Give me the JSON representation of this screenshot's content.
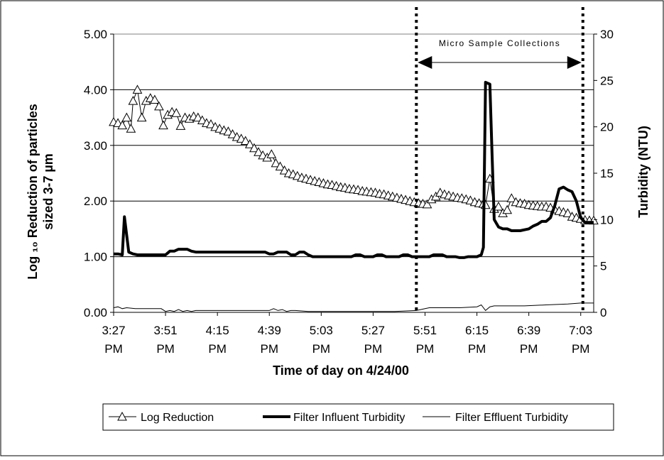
{
  "chart_data": {
    "type": "line",
    "xlabel": "Time of day on 4/24/00",
    "ylabel_left_line1": "Log ₁₀ Reduction of particles",
    "ylabel_left_line2": "sized 3-7 µm",
    "ylabel_right": "Turbidity (NTU)",
    "x_range_minutes": [
      0,
      222
    ],
    "x_tick_labels": [
      {
        "time": "3:27",
        "suffix": "PM",
        "minutes": 0
      },
      {
        "time": "3:51",
        "suffix": "PM",
        "minutes": 24
      },
      {
        "time": "4:15",
        "suffix": "PM",
        "minutes": 48
      },
      {
        "time": "4:39",
        "suffix": "PM",
        "minutes": 72
      },
      {
        "time": "5:03",
        "suffix": "PM",
        "minutes": 96
      },
      {
        "time": "5:27",
        "suffix": "PM",
        "minutes": 120
      },
      {
        "time": "5:51",
        "suffix": "PM",
        "minutes": 144
      },
      {
        "time": "6:15",
        "suffix": "PM",
        "minutes": 168
      },
      {
        "time": "6:39",
        "suffix": "PM",
        "minutes": 192
      },
      {
        "time": "7:03",
        "suffix": "PM",
        "minutes": 216
      }
    ],
    "y_left": {
      "range": [
        0,
        5
      ],
      "ticks": [
        "0.00",
        "1.00",
        "2.00",
        "3.00",
        "4.00",
        "5.00"
      ]
    },
    "y_right": {
      "range": [
        0,
        30
      ],
      "ticks": [
        "0",
        "5",
        "10",
        "15",
        "20",
        "25",
        "30"
      ]
    },
    "grid": "horizontal",
    "annotation": {
      "label": "Micro Sample Collections",
      "start_minutes": 140,
      "end_minutes": 217
    },
    "series": [
      {
        "name": "Log Reduction",
        "axis": "left",
        "marker": "triangle",
        "points": [
          [
            0,
            3.42
          ],
          [
            2,
            3.4
          ],
          [
            4,
            3.36
          ],
          [
            6,
            3.5
          ],
          [
            8,
            3.3
          ],
          [
            9,
            3.8
          ],
          [
            11,
            4.0
          ],
          [
            13,
            3.5
          ],
          [
            15,
            3.8
          ],
          [
            17,
            3.85
          ],
          [
            19,
            3.82
          ],
          [
            21,
            3.7
          ],
          [
            23,
            3.36
          ],
          [
            25,
            3.55
          ],
          [
            27,
            3.6
          ],
          [
            29,
            3.58
          ],
          [
            31,
            3.35
          ],
          [
            33,
            3.5
          ],
          [
            35,
            3.48
          ],
          [
            37,
            3.52
          ],
          [
            39,
            3.5
          ],
          [
            41,
            3.45
          ],
          [
            43,
            3.4
          ],
          [
            45,
            3.38
          ],
          [
            47,
            3.33
          ],
          [
            49,
            3.3
          ],
          [
            51,
            3.27
          ],
          [
            53,
            3.25
          ],
          [
            55,
            3.2
          ],
          [
            57,
            3.15
          ],
          [
            59,
            3.12
          ],
          [
            61,
            3.08
          ],
          [
            63,
            3.02
          ],
          [
            65,
            2.95
          ],
          [
            67,
            2.88
          ],
          [
            69,
            2.82
          ],
          [
            71,
            2.78
          ],
          [
            73,
            2.84
          ],
          [
            75,
            2.68
          ],
          [
            77,
            2.62
          ],
          [
            79,
            2.55
          ],
          [
            81,
            2.5
          ],
          [
            83,
            2.48
          ],
          [
            85,
            2.45
          ],
          [
            87,
            2.42
          ],
          [
            89,
            2.4
          ],
          [
            91,
            2.38
          ],
          [
            93,
            2.36
          ],
          [
            95,
            2.34
          ],
          [
            97,
            2.32
          ],
          [
            99,
            2.3
          ],
          [
            101,
            2.29
          ],
          [
            103,
            2.27
          ],
          [
            105,
            2.25
          ],
          [
            107,
            2.24
          ],
          [
            109,
            2.22
          ],
          [
            111,
            2.21
          ],
          [
            113,
            2.2
          ],
          [
            115,
            2.18
          ],
          [
            117,
            2.17
          ],
          [
            119,
            2.16
          ],
          [
            121,
            2.15
          ],
          [
            123,
            2.13
          ],
          [
            125,
            2.12
          ],
          [
            127,
            2.1
          ],
          [
            129,
            2.08
          ],
          [
            131,
            2.06
          ],
          [
            133,
            2.04
          ],
          [
            135,
            2.02
          ],
          [
            137,
            2.0
          ],
          [
            139,
            1.98
          ],
          [
            141,
            1.96
          ],
          [
            143,
            1.95
          ],
          [
            145,
            1.94
          ],
          [
            147,
            2.03
          ],
          [
            149,
            2.08
          ],
          [
            151,
            2.15
          ],
          [
            153,
            2.12
          ],
          [
            155,
            2.1
          ],
          [
            157,
            2.08
          ],
          [
            159,
            2.06
          ],
          [
            161,
            2.05
          ],
          [
            163,
            2.03
          ],
          [
            165,
            2.01
          ],
          [
            167,
            1.98
          ],
          [
            169,
            1.96
          ],
          [
            171,
            1.95
          ],
          [
            172,
            1.93
          ],
          [
            174,
            2.4
          ],
          [
            176,
            1.86
          ],
          [
            178,
            1.9
          ],
          [
            180,
            1.78
          ],
          [
            182,
            1.84
          ],
          [
            184,
            2.05
          ],
          [
            186,
            1.98
          ],
          [
            188,
            1.96
          ],
          [
            190,
            1.95
          ],
          [
            192,
            1.93
          ],
          [
            194,
            1.92
          ],
          [
            196,
            1.91
          ],
          [
            198,
            1.9
          ],
          [
            200,
            1.9
          ],
          [
            202,
            1.88
          ],
          [
            204,
            1.85
          ],
          [
            206,
            1.82
          ],
          [
            208,
            1.8
          ],
          [
            210,
            1.78
          ],
          [
            212,
            1.72
          ],
          [
            214,
            1.7
          ],
          [
            216,
            1.68
          ],
          [
            218,
            1.66
          ],
          [
            220,
            1.65
          ],
          [
            222,
            1.65
          ]
        ]
      },
      {
        "name": "Filter Influent Turbidity",
        "axis": "right",
        "points": [
          [
            0,
            6.3
          ],
          [
            2,
            6.3
          ],
          [
            4,
            6.2
          ],
          [
            5,
            10.3
          ],
          [
            7,
            6.5
          ],
          [
            9,
            6.3
          ],
          [
            11,
            6.2
          ],
          [
            13,
            6.2
          ],
          [
            20,
            6.2
          ],
          [
            24,
            6.2
          ],
          [
            26,
            6.6
          ],
          [
            28,
            6.6
          ],
          [
            30,
            6.8
          ],
          [
            32,
            6.8
          ],
          [
            34,
            6.8
          ],
          [
            36,
            6.6
          ],
          [
            38,
            6.5
          ],
          [
            40,
            6.5
          ],
          [
            50,
            6.5
          ],
          [
            60,
            6.5
          ],
          [
            70,
            6.5
          ],
          [
            72,
            6.3
          ],
          [
            74,
            6.3
          ],
          [
            76,
            6.5
          ],
          [
            78,
            6.5
          ],
          [
            80,
            6.5
          ],
          [
            82,
            6.2
          ],
          [
            84,
            6.2
          ],
          [
            86,
            6.5
          ],
          [
            88,
            6.5
          ],
          [
            90,
            6.2
          ],
          [
            92,
            6.0
          ],
          [
            94,
            6.0
          ],
          [
            100,
            6.0
          ],
          [
            110,
            6.0
          ],
          [
            112,
            6.2
          ],
          [
            114,
            6.2
          ],
          [
            116,
            6.0
          ],
          [
            118,
            6.0
          ],
          [
            120,
            6.0
          ],
          [
            122,
            6.2
          ],
          [
            124,
            6.2
          ],
          [
            126,
            6.0
          ],
          [
            128,
            6.0
          ],
          [
            130,
            6.0
          ],
          [
            132,
            6.0
          ],
          [
            134,
            6.2
          ],
          [
            136,
            6.2
          ],
          [
            138,
            6.0
          ],
          [
            140,
            6.0
          ],
          [
            142,
            6.0
          ],
          [
            144,
            6.0
          ],
          [
            146,
            6.0
          ],
          [
            148,
            6.2
          ],
          [
            150,
            6.2
          ],
          [
            152,
            6.2
          ],
          [
            154,
            6.0
          ],
          [
            156,
            6.0
          ],
          [
            158,
            6.0
          ],
          [
            160,
            5.9
          ],
          [
            162,
            5.9
          ],
          [
            164,
            6.0
          ],
          [
            166,
            6.0
          ],
          [
            168,
            6.0
          ],
          [
            170,
            6.2
          ],
          [
            171,
            7.0
          ],
          [
            172,
            24.8
          ],
          [
            174,
            24.6
          ],
          [
            175,
            17.0
          ],
          [
            176,
            10.0
          ],
          [
            178,
            9.2
          ],
          [
            180,
            9.0
          ],
          [
            182,
            9.0
          ],
          [
            184,
            8.8
          ],
          [
            186,
            8.8
          ],
          [
            188,
            8.8
          ],
          [
            190,
            8.9
          ],
          [
            192,
            9.0
          ],
          [
            194,
            9.3
          ],
          [
            196,
            9.5
          ],
          [
            198,
            9.8
          ],
          [
            200,
            9.8
          ],
          [
            202,
            10.2
          ],
          [
            204,
            11.5
          ],
          [
            206,
            13.3
          ],
          [
            208,
            13.5
          ],
          [
            210,
            13.2
          ],
          [
            212,
            13.0
          ],
          [
            214,
            12.0
          ],
          [
            216,
            10.2
          ],
          [
            218,
            9.7
          ],
          [
            220,
            9.7
          ],
          [
            222,
            9.7
          ]
        ]
      },
      {
        "name": "Filter Effluent Turbidity",
        "axis": "right",
        "points": [
          [
            0,
            0.5
          ],
          [
            2,
            0.6
          ],
          [
            4,
            0.4
          ],
          [
            6,
            0.5
          ],
          [
            10,
            0.4
          ],
          [
            14,
            0.4
          ],
          [
            18,
            0.4
          ],
          [
            22,
            0.4
          ],
          [
            24,
            0.1
          ],
          [
            26,
            0.2
          ],
          [
            28,
            0.1
          ],
          [
            30,
            0.3
          ],
          [
            32,
            0.1
          ],
          [
            34,
            0.2
          ],
          [
            36,
            0.1
          ],
          [
            38,
            0.2
          ],
          [
            40,
            0.2
          ],
          [
            50,
            0.2
          ],
          [
            60,
            0.2
          ],
          [
            70,
            0.2
          ],
          [
            72,
            0.2
          ],
          [
            74,
            0.4
          ],
          [
            76,
            0.2
          ],
          [
            78,
            0.3
          ],
          [
            80,
            0.1
          ],
          [
            82,
            0.2
          ],
          [
            84,
            0.2
          ],
          [
            90,
            0.1
          ],
          [
            100,
            0.1
          ],
          [
            110,
            0.1
          ],
          [
            120,
            0.1
          ],
          [
            130,
            0.1
          ],
          [
            140,
            0.2
          ],
          [
            142,
            0.3
          ],
          [
            144,
            0.4
          ],
          [
            146,
            0.5
          ],
          [
            150,
            0.5
          ],
          [
            160,
            0.5
          ],
          [
            168,
            0.6
          ],
          [
            170,
            0.8
          ],
          [
            172,
            0.2
          ],
          [
            174,
            0.6
          ],
          [
            176,
            0.7
          ],
          [
            180,
            0.7
          ],
          [
            190,
            0.7
          ],
          [
            200,
            0.8
          ],
          [
            210,
            0.9
          ],
          [
            216,
            1.0
          ],
          [
            222,
            1.0
          ]
        ]
      }
    ]
  }
}
